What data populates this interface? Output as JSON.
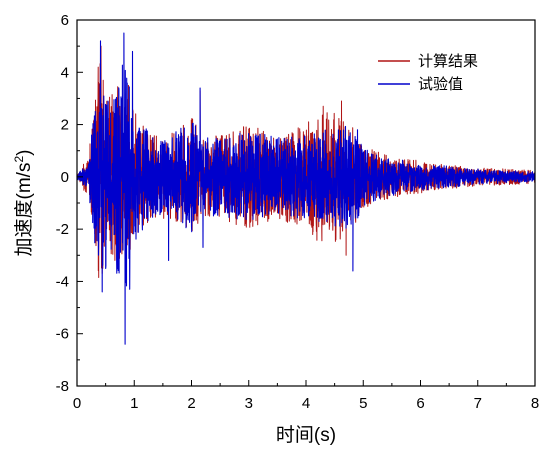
{
  "chart_data": {
    "type": "line",
    "title": "",
    "xlabel": "时间(s)",
    "ylabel_main": "加速度(m/s",
    "ylabel_sup": "2",
    "ylabel_close": ")",
    "xlim": [
      0,
      8
    ],
    "ylim": [
      -8,
      6
    ],
    "xticks": [
      "0",
      "1",
      "2",
      "3",
      "4",
      "5",
      "6",
      "7",
      "8"
    ],
    "yticks": [
      "6",
      "4",
      "2",
      "0",
      "-2",
      "-4",
      "-6",
      "-8"
    ],
    "grid": false,
    "legend_position": "top-right",
    "series": [
      {
        "name": "计算结果",
        "color": "#b01515",
        "envelope": [
          [
            0.0,
            0.1
          ],
          [
            0.2,
            0.8
          ],
          [
            0.3,
            3.0
          ],
          [
            0.4,
            5.0
          ],
          [
            0.5,
            3.0
          ],
          [
            0.7,
            3.5
          ],
          [
            0.9,
            3.0
          ],
          [
            1.0,
            2.5
          ],
          [
            1.3,
            1.7
          ],
          [
            1.6,
            1.6
          ],
          [
            2.0,
            2.3
          ],
          [
            2.2,
            1.5
          ],
          [
            2.5,
            1.6
          ],
          [
            3.0,
            2.0
          ],
          [
            3.5,
            1.6
          ],
          [
            4.0,
            2.0
          ],
          [
            4.3,
            2.7
          ],
          [
            4.6,
            2.4
          ],
          [
            4.8,
            2.0
          ],
          [
            5.0,
            1.3
          ],
          [
            5.3,
            0.9
          ],
          [
            5.8,
            0.7
          ],
          [
            6.3,
            0.5
          ],
          [
            7.0,
            0.35
          ],
          [
            8.0,
            0.25
          ]
        ],
        "peaks": [
          {
            "x": 0.37,
            "y": 4.2
          },
          {
            "x": 0.42,
            "y": 5.0
          },
          {
            "x": 0.32,
            "y": -2.5
          },
          {
            "x": 0.45,
            "y": -3.5
          },
          {
            "x": 0.9,
            "y": 3.5
          },
          {
            "x": 2.15,
            "y": 3.3
          },
          {
            "x": 4.3,
            "y": 2.7
          },
          {
            "x": 4.62,
            "y": 2.9
          },
          {
            "x": 4.7,
            "y": -3.0
          }
        ]
      },
      {
        "name": "试验值",
        "color": "#0000cc",
        "envelope": [
          [
            0.0,
            0.1
          ],
          [
            0.2,
            0.5
          ],
          [
            0.3,
            2.5
          ],
          [
            0.4,
            4.2
          ],
          [
            0.6,
            3.0
          ],
          [
            0.8,
            4.5
          ],
          [
            0.9,
            4.0
          ],
          [
            1.0,
            2.5
          ],
          [
            1.3,
            1.6
          ],
          [
            1.6,
            1.5
          ],
          [
            2.0,
            2.2
          ],
          [
            2.2,
            1.5
          ],
          [
            2.5,
            1.5
          ],
          [
            3.0,
            1.8
          ],
          [
            3.5,
            1.5
          ],
          [
            4.0,
            1.6
          ],
          [
            4.5,
            1.9
          ],
          [
            4.8,
            2.0
          ],
          [
            5.0,
            1.2
          ],
          [
            5.3,
            0.8
          ],
          [
            5.8,
            0.6
          ],
          [
            6.3,
            0.45
          ],
          [
            7.0,
            0.3
          ],
          [
            8.0,
            0.2
          ]
        ],
        "peaks": [
          {
            "x": 0.41,
            "y": 5.2
          },
          {
            "x": 0.44,
            "y": -4.4
          },
          {
            "x": 0.82,
            "y": 5.5
          },
          {
            "x": 0.84,
            "y": -6.4
          },
          {
            "x": 0.92,
            "y": -4.3
          },
          {
            "x": 0.97,
            "y": 4.8
          },
          {
            "x": 1.6,
            "y": -3.2
          },
          {
            "x": 2.15,
            "y": 3.4
          },
          {
            "x": 2.2,
            "y": -2.7
          },
          {
            "x": 4.82,
            "y": -3.6
          },
          {
            "x": 4.9,
            "y": 1.8
          }
        ]
      }
    ]
  }
}
